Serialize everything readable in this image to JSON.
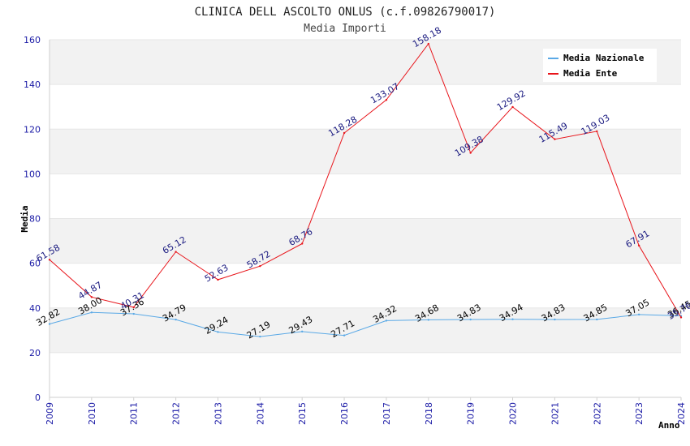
{
  "chart_data": {
    "type": "line",
    "title": "CLINICA DELL ASCOLTO ONLUS (c.f.09826790017)",
    "subtitle": "Media Importi",
    "xlabel": "Anno",
    "ylabel": "Media",
    "ylim": [
      0,
      160
    ],
    "yticks": [
      0,
      20,
      40,
      60,
      80,
      100,
      120,
      140,
      160
    ],
    "grid": true,
    "legend_position": "top-right",
    "x": [
      "2009",
      "2010",
      "2011",
      "2012",
      "2013",
      "2014",
      "2015",
      "2016",
      "2017",
      "2018",
      "2019",
      "2020",
      "2021",
      "2022",
      "2023",
      "2024"
    ],
    "series": [
      {
        "name": "Media Nazionale",
        "color": "#5aa9e6",
        "label_color": "#000000",
        "values": [
          32.82,
          38.0,
          37.36,
          34.79,
          29.24,
          27.19,
          29.43,
          27.71,
          34.32,
          34.68,
          34.83,
          34.94,
          34.83,
          34.85,
          37.05,
          36.45
        ],
        "labels": [
          "32.82",
          "38.00",
          "37.36",
          "34.79",
          "29.24",
          "27.19",
          "29.43",
          "27.71",
          "34.32",
          "34.68",
          "34.83",
          "34.94",
          "34.83",
          "34.85",
          "37.05",
          "36.45"
        ]
      },
      {
        "name": "Media Ente",
        "color": "#e8141a",
        "label_color": "#1a1a80",
        "values": [
          61.58,
          44.87,
          40.31,
          65.12,
          52.63,
          58.72,
          68.76,
          118.28,
          133.07,
          158.18,
          109.38,
          129.92,
          115.49,
          119.03,
          67.91,
          35.76
        ],
        "labels": [
          "61.58",
          "44.87",
          "40.31",
          "65.12",
          "52.63",
          "58.72",
          "68.76",
          "118.28",
          "133.07",
          "158.18",
          "109.38",
          "129.92",
          "115.49",
          "119.03",
          "67.91",
          "35.76"
        ]
      }
    ]
  }
}
